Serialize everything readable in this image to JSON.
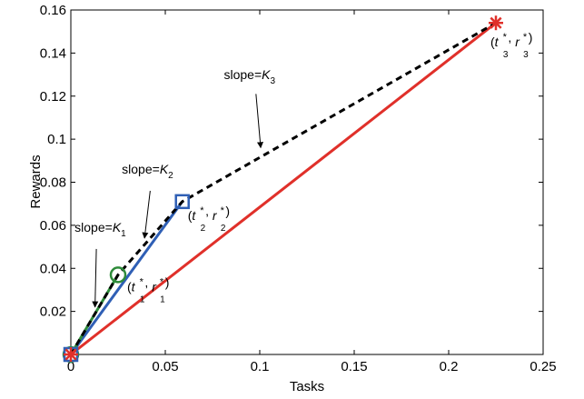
{
  "chart_data": {
    "type": "line",
    "title": "",
    "xlabel": "Tasks",
    "ylabel": "Rewards",
    "xlim": [
      0,
      0.25
    ],
    "ylim": [
      0,
      0.16
    ],
    "x_ticks": [
      0,
      0.05,
      0.1,
      0.15,
      0.2,
      0.25
    ],
    "x_tick_labels": [
      "0",
      "0.05",
      "0.1",
      "0.15",
      "0.2",
      "0.25"
    ],
    "y_ticks": [
      0.02,
      0.04,
      0.06,
      0.08,
      0.1,
      0.12,
      0.14,
      0.16
    ],
    "y_tick_labels": [
      "0.02",
      "0.04",
      "0.06",
      "0.08",
      "0.1",
      "0.12",
      "0.14",
      "0.16"
    ],
    "grid": false,
    "legend": "none",
    "series": [
      {
        "x": [
          0,
          0.025
        ],
        "y": [
          0,
          0.037
        ],
        "color": "#2e8b3a",
        "style": "solid"
      },
      {
        "x": [
          0,
          0.059
        ],
        "y": [
          0,
          0.071
        ],
        "color": "#2f5fb5",
        "style": "solid"
      },
      {
        "x": [
          0,
          0.225
        ],
        "y": [
          0,
          0.154
        ],
        "color": "#e0302a",
        "style": "solid"
      },
      {
        "x": [
          0,
          0.025,
          0.059,
          0.225
        ],
        "y": [
          0,
          0.037,
          0.071,
          0.154
        ],
        "color": "#000000",
        "style": "dashed"
      }
    ],
    "markers": [
      {
        "x": 0,
        "y": 0,
        "shape": "circle",
        "color": "#2e8b3a"
      },
      {
        "x": 0,
        "y": 0,
        "shape": "square",
        "color": "#2f5fb5"
      },
      {
        "x": 0,
        "y": 0,
        "shape": "star",
        "color": "#e0302a"
      },
      {
        "x": 0.025,
        "y": 0.037,
        "shape": "circle",
        "color": "#2e8b3a"
      },
      {
        "x": 0.059,
        "y": 0.071,
        "shape": "square",
        "color": "#2f5fb5"
      },
      {
        "x": 0.225,
        "y": 0.154,
        "shape": "star",
        "color": "#e0302a"
      }
    ],
    "point_labels": [
      {
        "x": 0.025,
        "y": 0.037,
        "t": "t",
        "r": "r",
        "sub": "1",
        "sup": "*"
      },
      {
        "x": 0.059,
        "y": 0.071,
        "t": "t",
        "r": "r",
        "sub": "2",
        "sup": "*"
      },
      {
        "x": 0.225,
        "y": 0.154,
        "t": "t",
        "r": "r",
        "sub": "3",
        "sup": "*"
      }
    ],
    "annotations": [
      {
        "text": "slope=",
        "var": "K",
        "sub": "1",
        "text_x": 0.002,
        "text_y": 0.057,
        "arrow_from": [
          0.0135,
          0.049
        ],
        "arrow_to": [
          0.0128,
          0.022
        ]
      },
      {
        "text": "slope=",
        "var": "K",
        "sub": "2",
        "text_x": 0.027,
        "text_y": 0.084,
        "arrow_from": [
          0.042,
          0.076
        ],
        "arrow_to": [
          0.039,
          0.054
        ]
      },
      {
        "text": "slope=",
        "var": "K",
        "sub": "3",
        "text_x": 0.081,
        "text_y": 0.128,
        "arrow_from": [
          0.098,
          0.121
        ],
        "arrow_to": [
          0.1005,
          0.096
        ]
      }
    ]
  }
}
